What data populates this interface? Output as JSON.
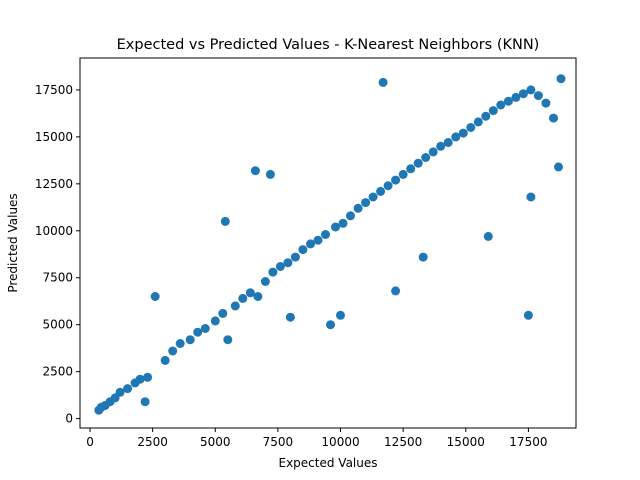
{
  "chart_data": {
    "type": "scatter",
    "title": "Expected vs Predicted Values - K-Nearest Neighbors (KNN)",
    "xlabel": "Expected Values",
    "ylabel": "Predicted Values",
    "xlim": [
      -400,
      19400
    ],
    "ylim": [
      -500,
      19200
    ],
    "x_ticks": [
      0,
      2500,
      5000,
      7500,
      10000,
      12500,
      15000,
      17500
    ],
    "y_ticks": [
      0,
      2500,
      5000,
      7500,
      10000,
      12500,
      15000,
      17500
    ],
    "x_tick_labels": [
      "0",
      "2500",
      "5000",
      "7500",
      "10000",
      "12500",
      "15000",
      "17500"
    ],
    "y_tick_labels": [
      "0",
      "2500",
      "5000",
      "7500",
      "10000",
      "12500",
      "15000",
      "17500"
    ],
    "grid": false,
    "marker_color": "#1f77b4",
    "points": [
      [
        350,
        450
      ],
      [
        450,
        600
      ],
      [
        600,
        700
      ],
      [
        800,
        900
      ],
      [
        1000,
        1100
      ],
      [
        1200,
        1400
      ],
      [
        1500,
        1600
      ],
      [
        1800,
        1900
      ],
      [
        2000,
        2100
      ],
      [
        2300,
        2200
      ],
      [
        2600,
        6500
      ],
      [
        2200,
        900
      ],
      [
        3000,
        3100
      ],
      [
        3300,
        3600
      ],
      [
        3600,
        4000
      ],
      [
        4000,
        4200
      ],
      [
        4300,
        4600
      ],
      [
        4600,
        4800
      ],
      [
        5000,
        5200
      ],
      [
        5300,
        5600
      ],
      [
        5400,
        10500
      ],
      [
        5500,
        4200
      ],
      [
        5800,
        6000
      ],
      [
        6100,
        6400
      ],
      [
        6400,
        6700
      ],
      [
        6700,
        6500
      ],
      [
        6600,
        13200
      ],
      [
        7200,
        13000
      ],
      [
        7000,
        7300
      ],
      [
        7300,
        7800
      ],
      [
        7600,
        8100
      ],
      [
        7900,
        8300
      ],
      [
        8000,
        5400
      ],
      [
        8200,
        8600
      ],
      [
        8500,
        9000
      ],
      [
        8800,
        9300
      ],
      [
        9100,
        9500
      ],
      [
        9400,
        9800
      ],
      [
        9600,
        5000
      ],
      [
        9800,
        10200
      ],
      [
        10000,
        5500
      ],
      [
        10100,
        10400
      ],
      [
        10400,
        10800
      ],
      [
        10700,
        11200
      ],
      [
        11000,
        11500
      ],
      [
        11300,
        11800
      ],
      [
        11600,
        12100
      ],
      [
        11700,
        17900
      ],
      [
        11900,
        12400
      ],
      [
        12200,
        12700
      ],
      [
        12200,
        6800
      ],
      [
        12500,
        13000
      ],
      [
        12800,
        13300
      ],
      [
        13100,
        13600
      ],
      [
        13300,
        8600
      ],
      [
        13400,
        13900
      ],
      [
        13700,
        14200
      ],
      [
        14000,
        14500
      ],
      [
        14300,
        14700
      ],
      [
        14600,
        15000
      ],
      [
        14900,
        15200
      ],
      [
        15200,
        15500
      ],
      [
        15500,
        15800
      ],
      [
        15800,
        16100
      ],
      [
        15900,
        9700
      ],
      [
        16100,
        16400
      ],
      [
        16400,
        16700
      ],
      [
        16700,
        16900
      ],
      [
        17000,
        17100
      ],
      [
        17300,
        17300
      ],
      [
        17500,
        5500
      ],
      [
        17600,
        11800
      ],
      [
        17600,
        17500
      ],
      [
        17900,
        17200
      ],
      [
        18200,
        16800
      ],
      [
        18500,
        16000
      ],
      [
        18700,
        13400
      ],
      [
        18800,
        18100
      ]
    ]
  }
}
